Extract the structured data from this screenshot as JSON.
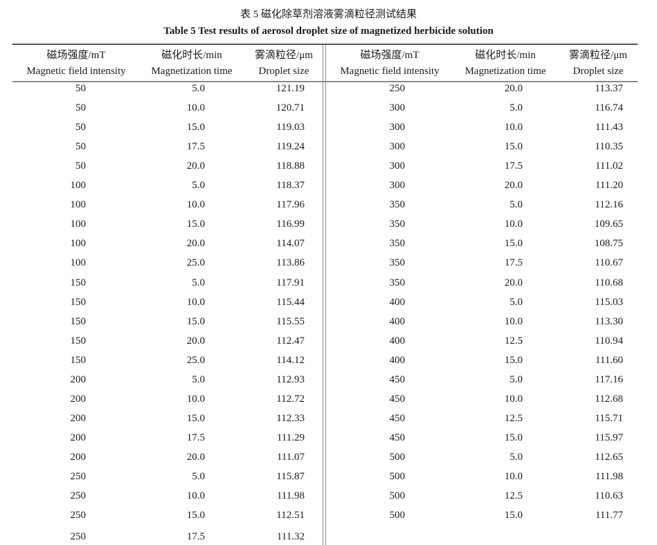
{
  "title_cn": "表 5   磁化除草剂溶液雾滴粒径测试结果",
  "title_en": "Table 5    Test results of aerosol droplet size of magnetized herbicide solution",
  "headers": [
    {
      "cn": "磁场强度/mT",
      "en": "Magnetic field intensity"
    },
    {
      "cn": "磁化时长/min",
      "en": "Magnetization time"
    },
    {
      "cn": "雾滴粒径/μm",
      "en": "Droplet size"
    }
  ],
  "left_rows": [
    [
      "50",
      "5.0",
      "121.19"
    ],
    [
      "50",
      "10.0",
      "120.71"
    ],
    [
      "50",
      "15.0",
      "119.03"
    ],
    [
      "50",
      "17.5",
      "119.24"
    ],
    [
      "50",
      "20.0",
      "118.88"
    ],
    [
      "100",
      "5.0",
      "118.37"
    ],
    [
      "100",
      "10.0",
      "117.96"
    ],
    [
      "100",
      "15.0",
      "116.99"
    ],
    [
      "100",
      "20.0",
      "114.07"
    ],
    [
      "100",
      "25.0",
      "113.86"
    ],
    [
      "150",
      "5.0",
      "117.91"
    ],
    [
      "150",
      "10.0",
      "115.44"
    ],
    [
      "150",
      "15.0",
      "115.55"
    ],
    [
      "150",
      "20.0",
      "112.47"
    ],
    [
      "150",
      "25.0",
      "114.12"
    ],
    [
      "200",
      "5.0",
      "112.93"
    ],
    [
      "200",
      "10.0",
      "112.72"
    ],
    [
      "200",
      "15.0",
      "112.33"
    ],
    [
      "200",
      "17.5",
      "111.29"
    ],
    [
      "200",
      "20.0",
      "111.07"
    ],
    [
      "250",
      "5.0",
      "115.87"
    ],
    [
      "250",
      "10.0",
      "111.98"
    ],
    [
      "250",
      "15.0",
      "112.51"
    ],
    [
      "250",
      "17.5",
      "111.32"
    ]
  ],
  "right_rows": [
    [
      "250",
      "20.0",
      "113.37"
    ],
    [
      "300",
      "5.0",
      "116.74"
    ],
    [
      "300",
      "10.0",
      "111.43"
    ],
    [
      "300",
      "15.0",
      "110.35"
    ],
    [
      "300",
      "17.5",
      "111.02"
    ],
    [
      "300",
      "20.0",
      "111.20"
    ],
    [
      "350",
      "5.0",
      "112.16"
    ],
    [
      "350",
      "10.0",
      "109.65"
    ],
    [
      "350",
      "15.0",
      "108.75"
    ],
    [
      "350",
      "17.5",
      "110.67"
    ],
    [
      "350",
      "20.0",
      "110.68"
    ],
    [
      "400",
      "5.0",
      "115.03"
    ],
    [
      "400",
      "10.0",
      "113.30"
    ],
    [
      "400",
      "12.5",
      "110.94"
    ],
    [
      "400",
      "15.0",
      "111.60"
    ],
    [
      "450",
      "5.0",
      "117.16"
    ],
    [
      "450",
      "10.0",
      "112.68"
    ],
    [
      "450",
      "12.5",
      "115.71"
    ],
    [
      "450",
      "15.0",
      "115.97"
    ],
    [
      "500",
      "5.0",
      "112.65"
    ],
    [
      "500",
      "10.0",
      "111.98"
    ],
    [
      "500",
      "12.5",
      "110.63"
    ],
    [
      "500",
      "15.0",
      "111.77"
    ]
  ]
}
